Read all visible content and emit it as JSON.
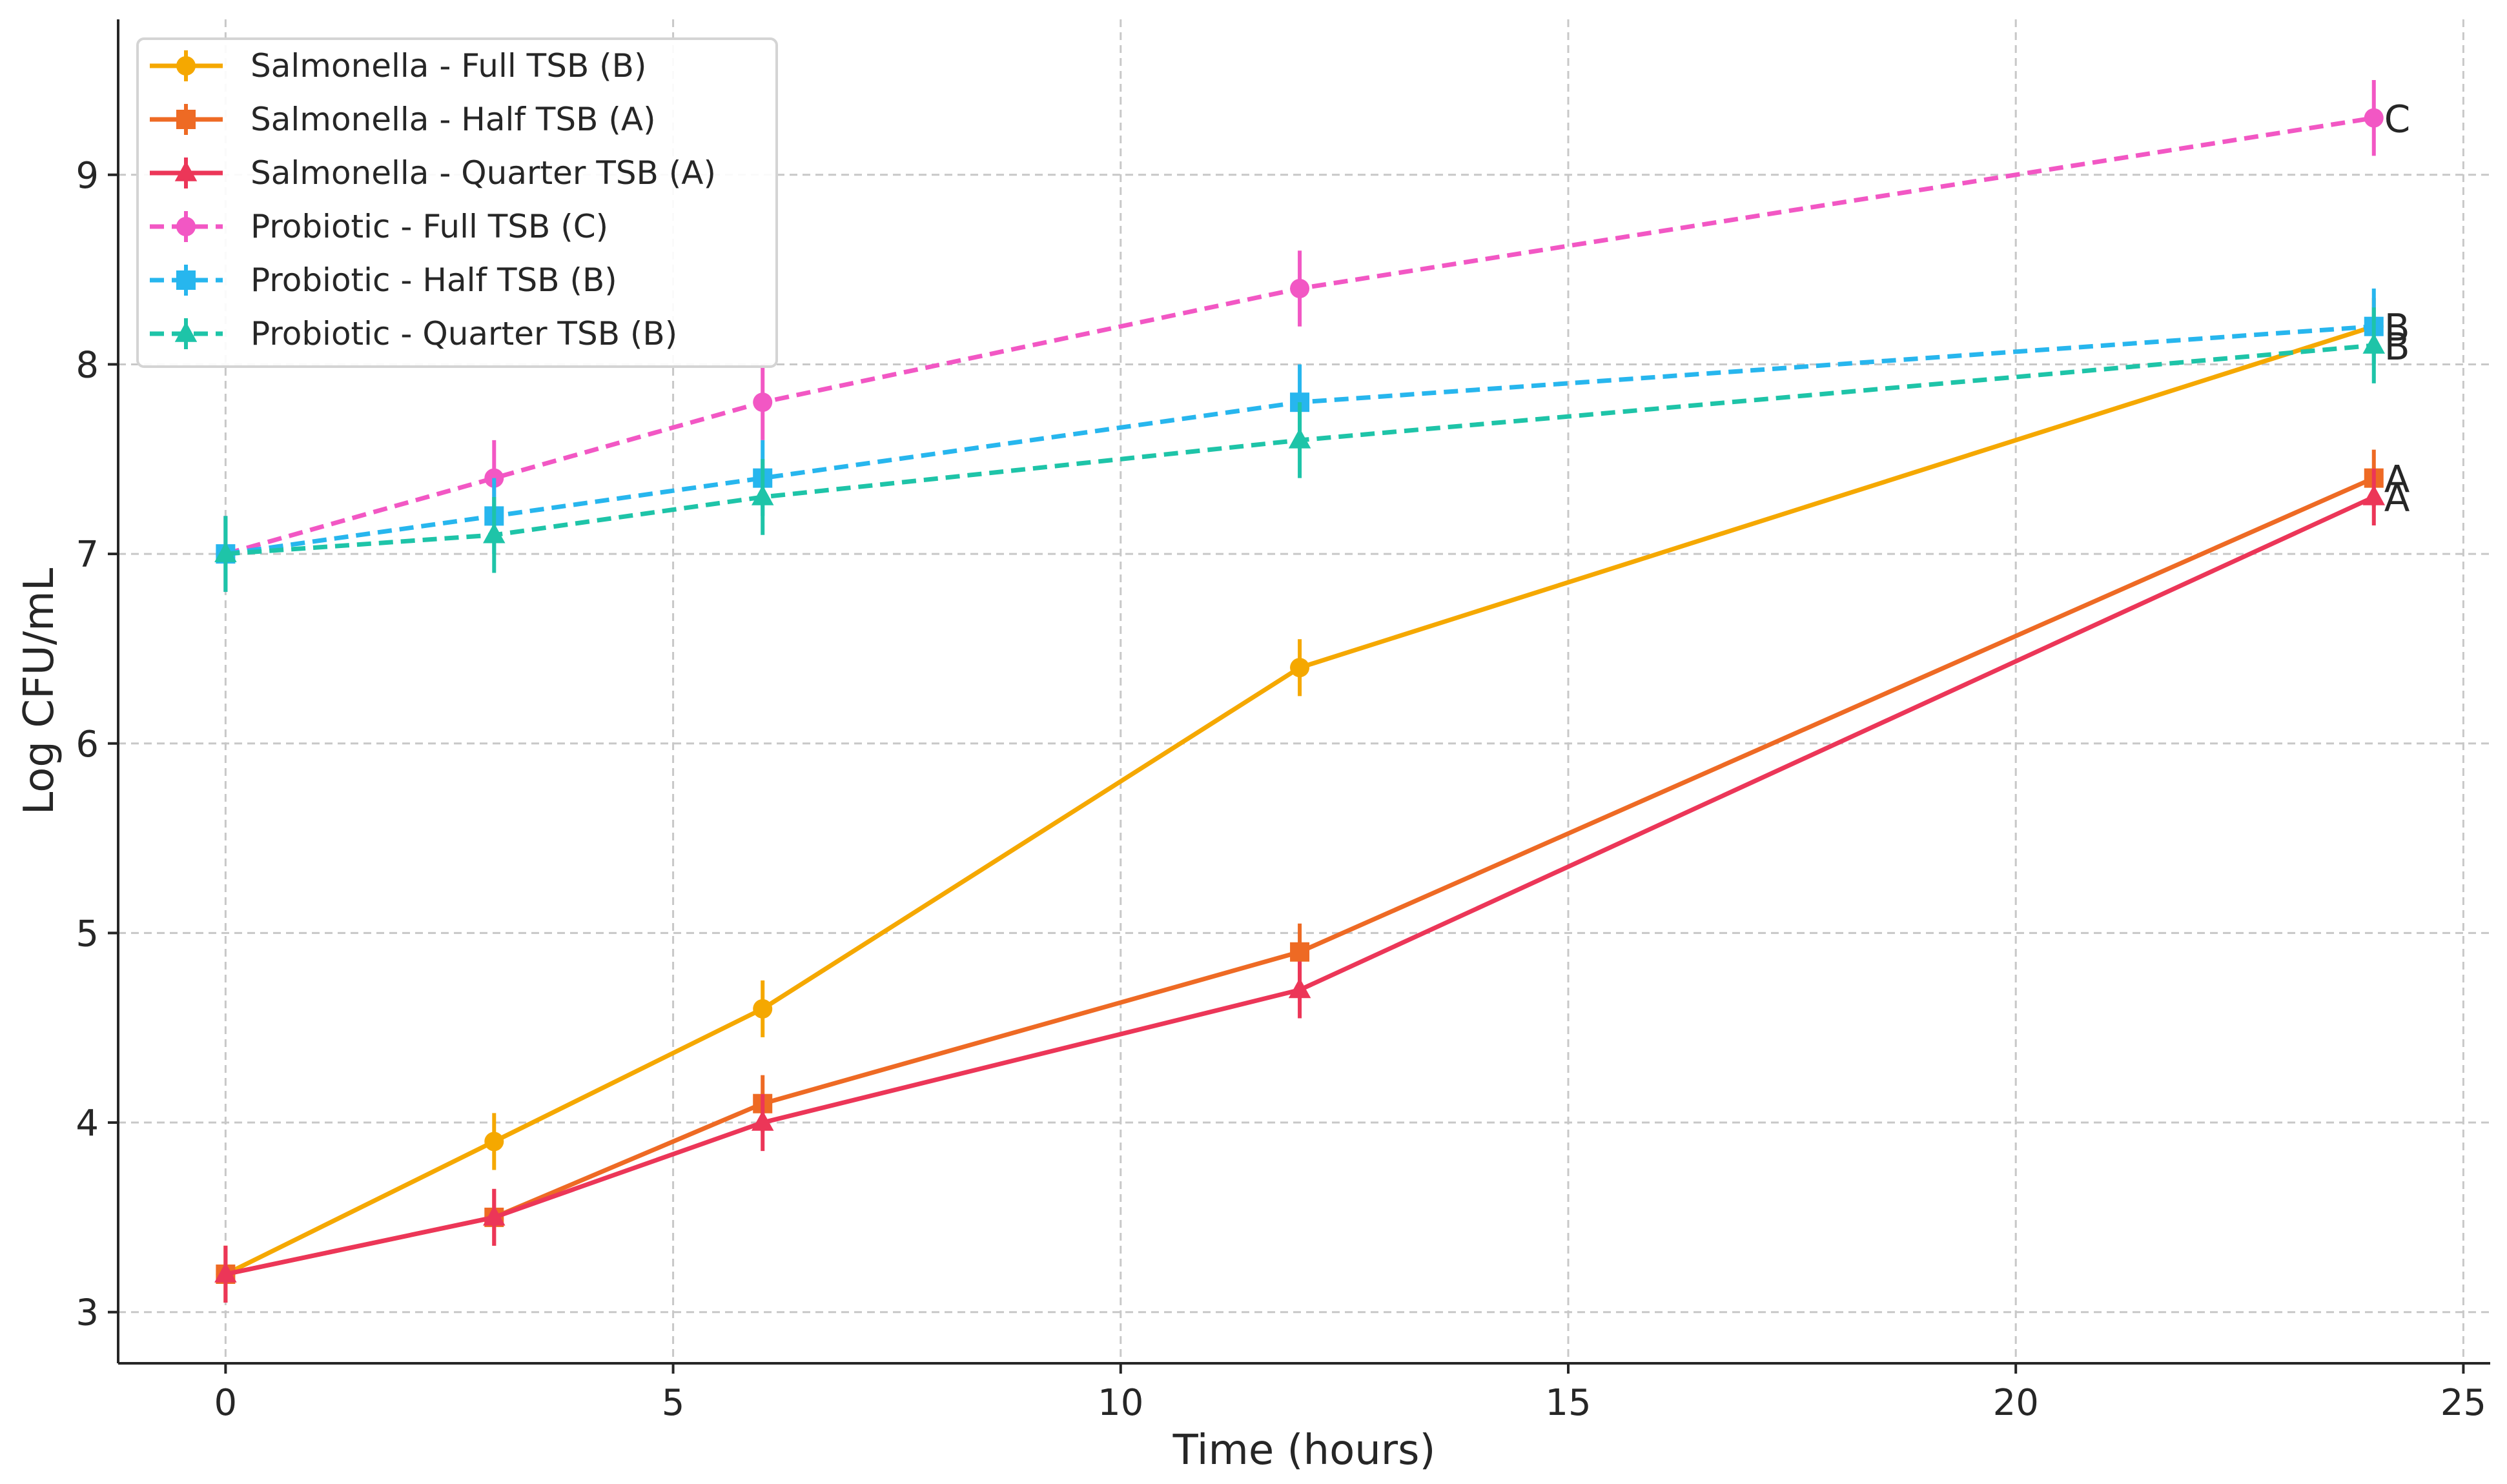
{
  "chart_data": {
    "type": "line",
    "title": "",
    "xlabel": "Time (hours)",
    "ylabel": "Log CFU/mL",
    "xlim": [
      -1.2,
      25.3
    ],
    "ylim": [
      2.73,
      9.82
    ],
    "xticks": [
      0,
      5,
      10,
      15,
      20,
      25
    ],
    "yticks": [
      3,
      4,
      5,
      6,
      7,
      8,
      9
    ],
    "xtick_labels": [
      "0",
      "5",
      "10",
      "15",
      "20",
      "25"
    ],
    "ytick_labels": [
      "3",
      "4",
      "5",
      "6",
      "7",
      "8",
      "9"
    ],
    "grid": true,
    "legend_position": "top-left",
    "x": [
      0,
      3,
      6,
      12,
      24
    ],
    "series": [
      {
        "name": "Salmonella - Full TSB (B)",
        "values": [
          3.2,
          3.9,
          4.6,
          6.4,
          8.2
        ],
        "error": [
          0.15,
          0.15,
          0.15,
          0.15,
          0.15
        ],
        "color": "#f5a800",
        "linestyle": "solid",
        "marker": "circle",
        "annotation": ""
      },
      {
        "name": "Salmonella - Half TSB (A)",
        "values": [
          3.2,
          3.5,
          4.1,
          4.9,
          7.4
        ],
        "error": [
          0.15,
          0.15,
          0.15,
          0.15,
          0.15
        ],
        "color": "#ee6a24",
        "linestyle": "solid",
        "marker": "square",
        "annotation": "A"
      },
      {
        "name": "Salmonella - Quarter TSB (A)",
        "values": [
          3.2,
          3.5,
          4.0,
          4.7,
          7.3
        ],
        "error": [
          0.15,
          0.15,
          0.15,
          0.15,
          0.15
        ],
        "color": "#ec3658",
        "linestyle": "solid",
        "marker": "triangle",
        "annotation": "A"
      },
      {
        "name": "Probiotic - Full TSB (C)",
        "values": [
          7.0,
          7.4,
          7.8,
          8.4,
          9.3
        ],
        "error": [
          0.2,
          0.2,
          0.2,
          0.2,
          0.2
        ],
        "color": "#f257c4",
        "linestyle": "dashed",
        "marker": "circle",
        "annotation": "C"
      },
      {
        "name": "Probiotic - Half TSB (B)",
        "values": [
          7.0,
          7.2,
          7.4,
          7.8,
          8.2
        ],
        "error": [
          0.2,
          0.2,
          0.2,
          0.2,
          0.2
        ],
        "color": "#27b6ee",
        "linestyle": "dashed",
        "marker": "square",
        "annotation": "B"
      },
      {
        "name": "Probiotic - Quarter TSB (B)",
        "values": [
          7.0,
          7.1,
          7.3,
          7.6,
          8.1
        ],
        "error": [
          0.2,
          0.2,
          0.2,
          0.2,
          0.2
        ],
        "color": "#1ec4a8",
        "linestyle": "dashed",
        "marker": "triangle",
        "annotation": "B"
      }
    ]
  }
}
